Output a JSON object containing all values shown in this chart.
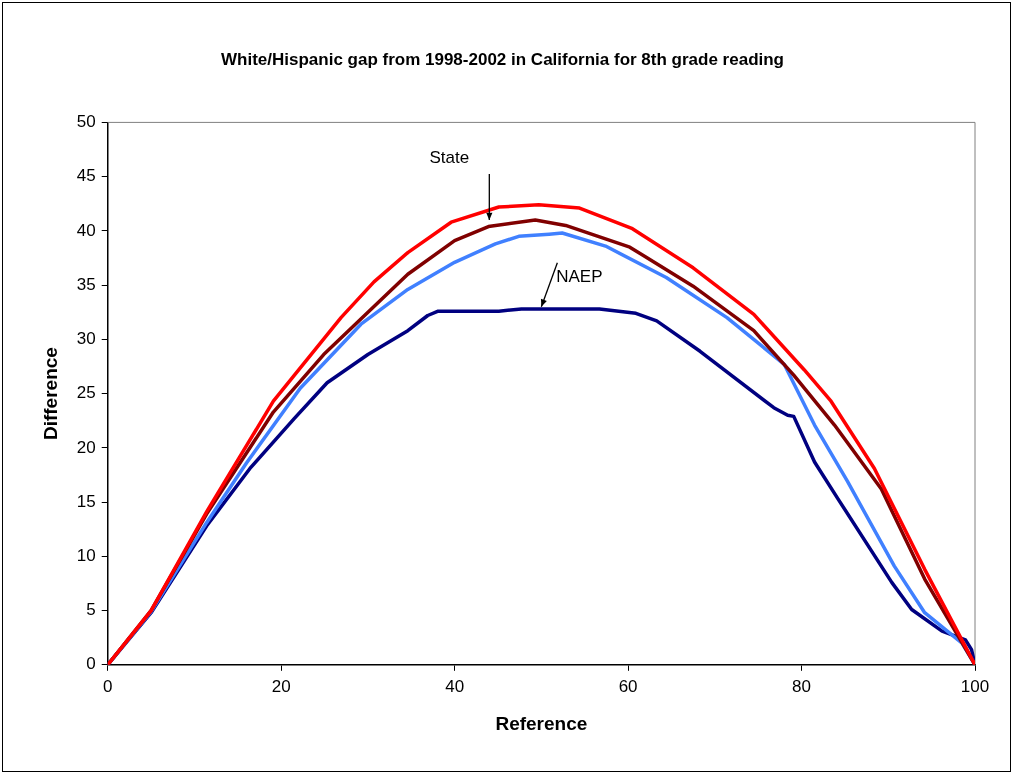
{
  "chart_data": {
    "type": "line",
    "title": "White/Hispanic gap from 1998-2002 in California for 8th grade reading",
    "xlabel": "Reference",
    "ylabel": "Difference",
    "xlim": [
      0,
      100
    ],
    "xticks": [
      0,
      20,
      40,
      60,
      80,
      100
    ],
    "ylim": [
      0,
      50
    ],
    "yticks": [
      0,
      5,
      10,
      15,
      20,
      25,
      30,
      35,
      40,
      45,
      50
    ],
    "grid": false,
    "legend": false,
    "marker": "none",
    "line_style": "solid",
    "series": [
      {
        "color": "#ff0000",
        "x": [
          0,
          5,
          11.4,
          19.1,
          26.9,
          30.7,
          34.6,
          39.6,
          45.1,
          49.7,
          54.4,
          60.5,
          67.5,
          74.5,
          80.3,
          83.4,
          88.4,
          94.2,
          100
        ],
        "values": [
          0,
          5,
          14.1,
          24.3,
          32.0,
          35.3,
          38.0,
          40.8,
          42.2,
          42.4,
          42.1,
          40.2,
          36.6,
          32.3,
          27.2,
          24.3,
          18.1,
          8.8,
          0
        ]
      },
      {
        "color": "#800000",
        "x": [
          0,
          5,
          11.4,
          19.1,
          24.9,
          34.6,
          40.0,
          43.9,
          49.3,
          52.8,
          60.2,
          67.5,
          74.5,
          79.1,
          83.8,
          89.2,
          94.2,
          100
        ],
        "values": [
          0,
          5,
          13.9,
          23.3,
          28.6,
          36.0,
          39.1,
          40.4,
          41.0,
          40.5,
          38.5,
          34.9,
          30.8,
          26.7,
          22.1,
          16.2,
          7.9,
          0
        ]
      },
      {
        "color": "#4080ff",
        "x": [
          0,
          5,
          11.4,
          16.0,
          22.2,
          29.2,
          34.6,
          40.0,
          44.7,
          47.4,
          50.9,
          52.4,
          57.4,
          64.4,
          71.4,
          78.0,
          81.5,
          85.3,
          90.7,
          94.2,
          98.5,
          100
        ],
        "values": [
          0,
          4.9,
          13.1,
          18.6,
          25.5,
          31.4,
          34.6,
          37.1,
          38.8,
          39.5,
          39.7,
          39.8,
          38.6,
          35.7,
          32.0,
          27.7,
          22.1,
          16.9,
          9.1,
          4.8,
          2.0,
          0
        ]
      },
      {
        "color": "#000080",
        "x": [
          0,
          5,
          11.4,
          16.4,
          21.5,
          25.3,
          30.0,
          34.6,
          36.9,
          38.1,
          45.1,
          47.7,
          56.7,
          60.9,
          63.3,
          68.3,
          76.8,
          78.4,
          79.1,
          81.5,
          84.2,
          90.4,
          92.7,
          96.2,
          98.9,
          99.6,
          100
        ],
        "values": [
          0,
          4.8,
          12.8,
          18.1,
          22.7,
          26.0,
          28.6,
          30.8,
          32.2,
          32.6,
          32.6,
          32.8,
          32.8,
          32.4,
          31.7,
          28.9,
          23.7,
          23.0,
          22.9,
          18.7,
          15.3,
          7.6,
          5.1,
          3.1,
          2.3,
          1.4,
          0
        ]
      }
    ],
    "annotations": [
      {
        "text": "State",
        "x": 44,
        "y": 41
      },
      {
        "text": "NAEP",
        "x": 50,
        "y": 33
      }
    ]
  }
}
